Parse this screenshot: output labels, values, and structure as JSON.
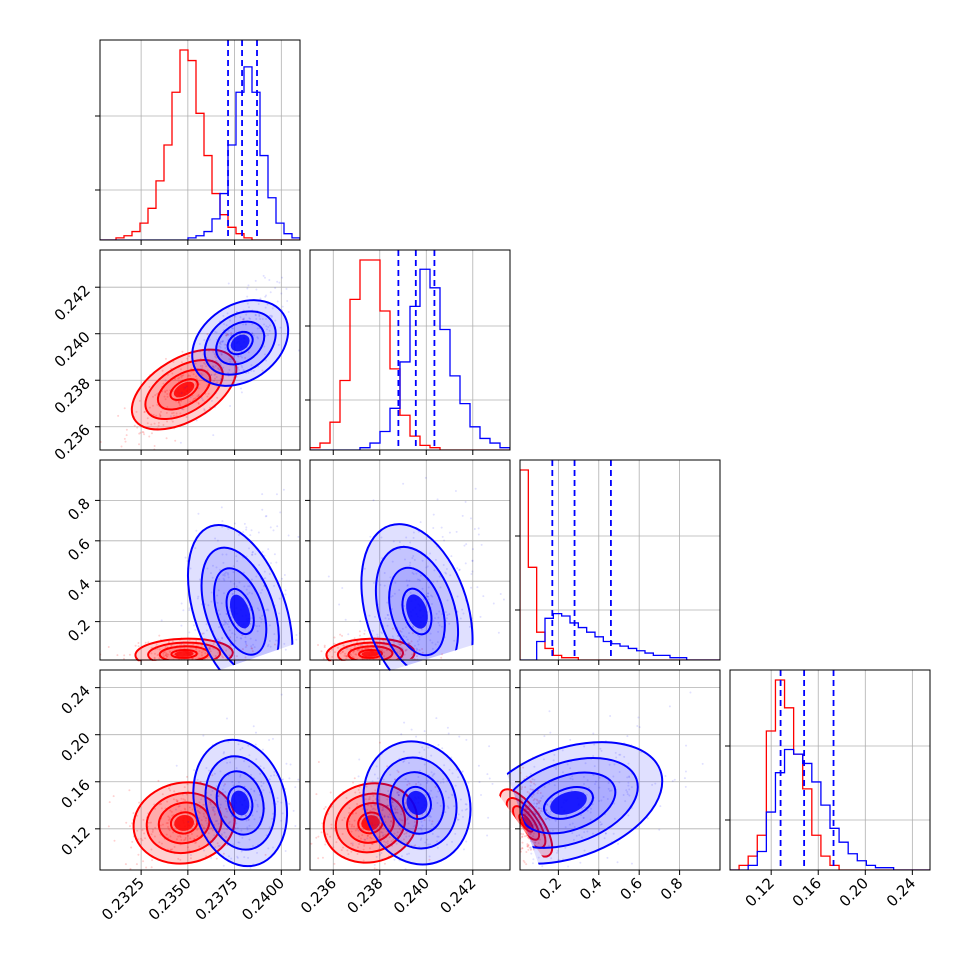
{
  "chart_data": {
    "type": "corner",
    "parameters": 4,
    "series": [
      {
        "color": "#ff0000"
      },
      {
        "color": "#0000ff",
        "quantiles": [
          [
            0.23715,
            0.2379,
            0.2387
          ],
          [
            0.2388,
            0.23955,
            0.24035
          ],
          [
            0.17,
            0.28,
            0.46
          ],
          [
            0.128,
            0.148,
            0.173
          ]
        ]
      }
    ],
    "axes": [
      {
        "range": [
          0.2303,
          0.241
        ],
        "ticks": [
          0.2325,
          0.235,
          0.2375,
          0.24
        ],
        "tick_labels": [
          "0.2325",
          "0.2350",
          "0.2375",
          "0.2400"
        ]
      },
      {
        "range": [
          0.235,
          0.2436
        ],
        "ticks": [
          0.236,
          0.238,
          0.24,
          0.242
        ],
        "tick_labels": [
          "0.236",
          "0.238",
          "0.240",
          "0.242"
        ]
      },
      {
        "range": [
          0.01,
          1.0
        ],
        "ticks": [
          0.2,
          0.4,
          0.6,
          0.8
        ],
        "tick_labels": [
          "0.2",
          "0.4",
          "0.6",
          "0.8"
        ]
      },
      {
        "range": [
          0.085,
          0.255
        ],
        "ticks": [
          0.12,
          0.16,
          0.2,
          0.24
        ],
        "tick_labels": [
          "0.12",
          "0.16",
          "0.20",
          "0.24"
        ]
      }
    ],
    "histograms": [
      {
        "bins": 25,
        "red": [
          0,
          0,
          1,
          2,
          4,
          8,
          15,
          28,
          45,
          70,
          90,
          85,
          60,
          40,
          22,
          12,
          6,
          3,
          1,
          0,
          0,
          0,
          0,
          0,
          0
        ],
        "blue": [
          0,
          0,
          0,
          0,
          0,
          0,
          0,
          0,
          0,
          0,
          0,
          1,
          2,
          4,
          10,
          22,
          45,
          70,
          82,
          70,
          40,
          20,
          8,
          3,
          1
        ]
      },
      {
        "bins": 20,
        "red": [
          1,
          3,
          12,
          30,
          65,
          82,
          82,
          60,
          35,
          15,
          6,
          2,
          1,
          0,
          0,
          0,
          0,
          0,
          0,
          0
        ],
        "blue": [
          0,
          0,
          0,
          0,
          0,
          1,
          3,
          8,
          18,
          38,
          62,
          78,
          70,
          52,
          32,
          20,
          10,
          5,
          3,
          1
        ]
      },
      {
        "bins": 24,
        "red": [
          82,
          40,
          12,
          5,
          2,
          1,
          1,
          0,
          0,
          0,
          0,
          0,
          0,
          0,
          0,
          0,
          0,
          0,
          0,
          0,
          0,
          0,
          0,
          0
        ],
        "blue": [
          0,
          0,
          8,
          18,
          20,
          19,
          16,
          14,
          12,
          10,
          8,
          7,
          6,
          5,
          4,
          3,
          2,
          2,
          1,
          1,
          0,
          0,
          0,
          0
        ]
      },
      {
        "bins": 22,
        "red": [
          0,
          2,
          6,
          15,
          60,
          82,
          70,
          50,
          35,
          15,
          6,
          2,
          0,
          0,
          0,
          0,
          0,
          0,
          0,
          0,
          0,
          0
        ],
        "blue": [
          0,
          0,
          2,
          8,
          25,
          42,
          52,
          50,
          46,
          38,
          28,
          18,
          12,
          7,
          4,
          2,
          1,
          1,
          0,
          0,
          0,
          0
        ]
      }
    ],
    "centers": {
      "red": [
        0.2348,
        0.2376,
        0.04,
        0.125
      ],
      "blue": [
        0.2378,
        0.2396,
        0.25,
        0.142
      ]
    },
    "correlations": {
      "red": {
        "1-0": 0.75,
        "2-0": 0.1,
        "2-1": 0.1,
        "3-0": 0.25,
        "3-1": 0.35,
        "3-2": 0.3
      },
      "blue": {
        "1-0": 0.7,
        "2-0": 0.2,
        "2-1": 0.2,
        "3-0": 0.2,
        "3-1": 0.3,
        "3-2": 0.55
      }
    },
    "spreads": {
      "red": [
        0.0011,
        0.0008,
        0.03,
        0.014
      ],
      "blue": [
        0.001,
        0.0009,
        0.18,
        0.022
      ]
    }
  }
}
